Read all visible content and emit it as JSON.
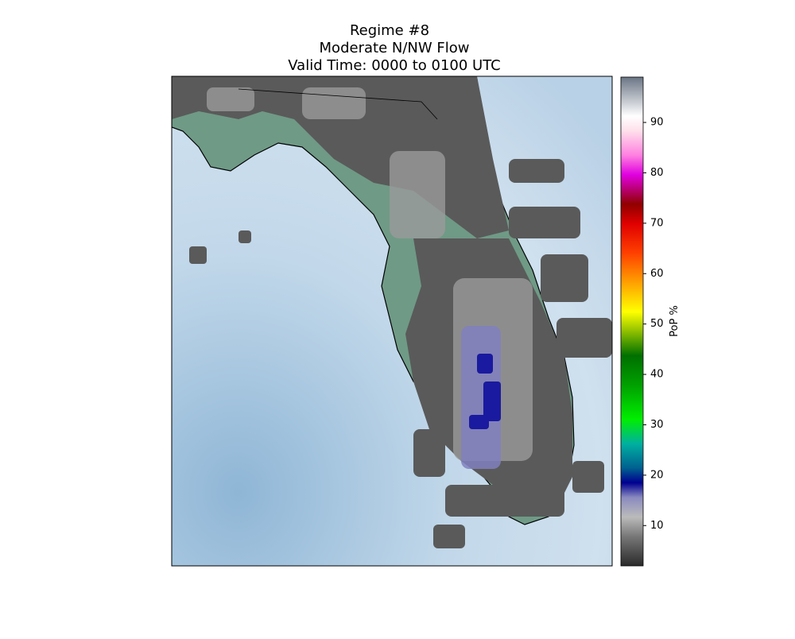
{
  "title": [
    "Regime #8",
    "Moderate N/NW Flow",
    "Valid Time: 0000 to 0100 UTC"
  ],
  "colorbar": {
    "label": "PoP %",
    "lim": [
      2,
      99
    ],
    "ticks": [
      10,
      20,
      30,
      40,
      50,
      60,
      70,
      80,
      90
    ]
  }
}
